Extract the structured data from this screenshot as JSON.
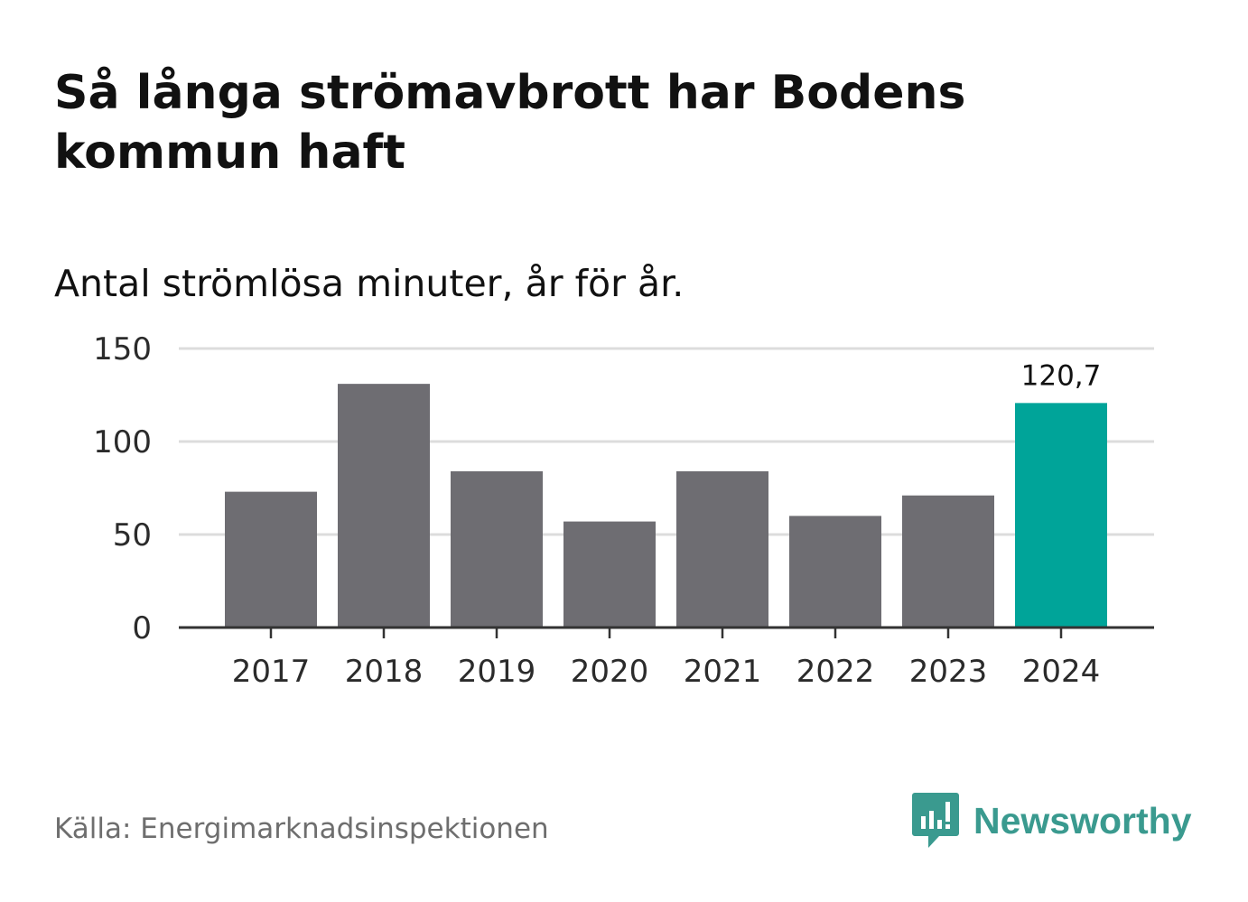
{
  "title": "Så långa strömavbrott har Bodens kommun haft",
  "subtitle": "Antal strömlösa minuter, år för år.",
  "source": "Källa: Energimarknadsinspektionen",
  "logo": {
    "text": "Newsworthy",
    "icon": "newsworthy-logo-icon"
  },
  "colors": {
    "bar_default": "#6e6d72",
    "bar_highlight": "#00a499",
    "grid": "#dcdcdc",
    "axis": "#333333",
    "logo": "#3a9a8f"
  },
  "chart_data": {
    "type": "bar",
    "title": "Så långa strömavbrott har Bodens kommun haft",
    "subtitle": "Antal strömlösa minuter, år för år.",
    "xlabel": "",
    "ylabel": "",
    "categories": [
      "2017",
      "2018",
      "2019",
      "2020",
      "2021",
      "2022",
      "2023",
      "2024"
    ],
    "values": [
      73,
      131,
      84,
      57,
      84,
      60,
      71,
      120.7
    ],
    "highlight_index": 7,
    "data_labels": [
      {
        "index": 7,
        "text": "120,7"
      }
    ],
    "ylim": [
      0,
      150
    ],
    "yticks": [
      0,
      50,
      100,
      150
    ],
    "ytick_labels": [
      "0",
      "50",
      "100",
      "150"
    ],
    "grid": true
  }
}
